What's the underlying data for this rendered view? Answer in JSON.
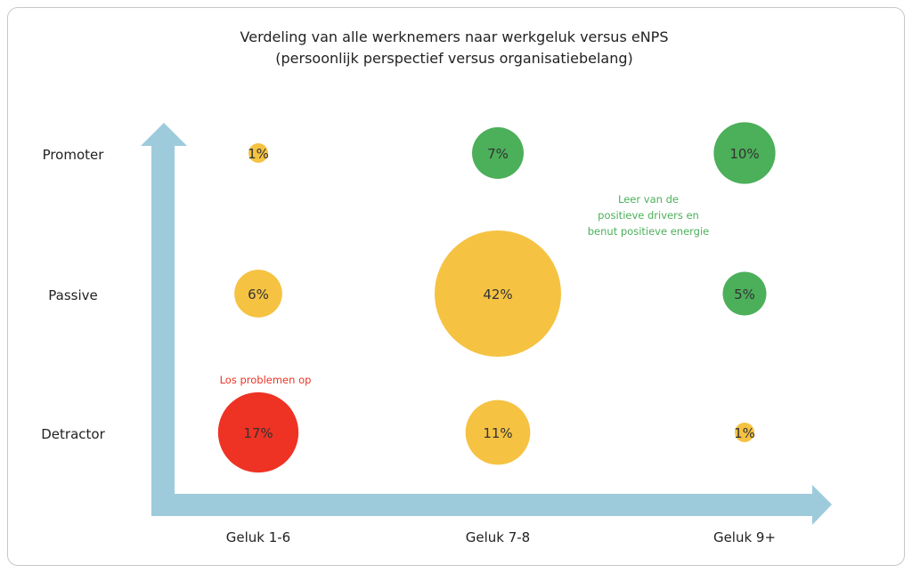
{
  "chart_data": {
    "type": "scatter",
    "subtype": "bubble",
    "title": "Verdeling van alle werknemers naar werkgeluk versus eNPS",
    "subtitle": "(persoonlijk perspectief versus organisatiebelang)",
    "x_categories": [
      "Geluk 1-6",
      "Geluk 7-8",
      "Geluk 9+"
    ],
    "y_categories": [
      "Detractor",
      "Passive",
      "Promoter"
    ],
    "points": [
      {
        "x": "Geluk 1-6",
        "y": "Promoter",
        "value": 1,
        "label": "1%",
        "color": "#F5C242"
      },
      {
        "x": "Geluk 7-8",
        "y": "Promoter",
        "value": 7,
        "label": "7%",
        "color": "#4CAF5A"
      },
      {
        "x": "Geluk 9+",
        "y": "Promoter",
        "value": 10,
        "label": "10%",
        "color": "#4CAF5A"
      },
      {
        "x": "Geluk 1-6",
        "y": "Passive",
        "value": 6,
        "label": "6%",
        "color": "#F5C242"
      },
      {
        "x": "Geluk 7-8",
        "y": "Passive",
        "value": 42,
        "label": "42%",
        "color": "#F5C242"
      },
      {
        "x": "Geluk 9+",
        "y": "Passive",
        "value": 5,
        "label": "5%",
        "color": "#4CAF5A"
      },
      {
        "x": "Geluk 1-6",
        "y": "Detractor",
        "value": 17,
        "label": "17%",
        "color": "#EE3224"
      },
      {
        "x": "Geluk 7-8",
        "y": "Detractor",
        "value": 11,
        "label": "11%",
        "color": "#F5C242"
      },
      {
        "x": "Geluk 9+",
        "y": "Detractor",
        "value": 1,
        "label": "1%",
        "color": "#F5C242"
      }
    ],
    "annotations": [
      {
        "lines": [
          "Leer van de",
          "positieve drivers en",
          "benut positieve energie"
        ],
        "color": "#4CAF5A",
        "near": "Geluk 9+ / Promoter"
      },
      {
        "lines": [
          "Los problemen op"
        ],
        "color": "#EE3224",
        "near": "Geluk 1-6 / Detractor"
      }
    ],
    "axis_color": "#9ECBDB",
    "grid": false,
    "legend": "none"
  }
}
